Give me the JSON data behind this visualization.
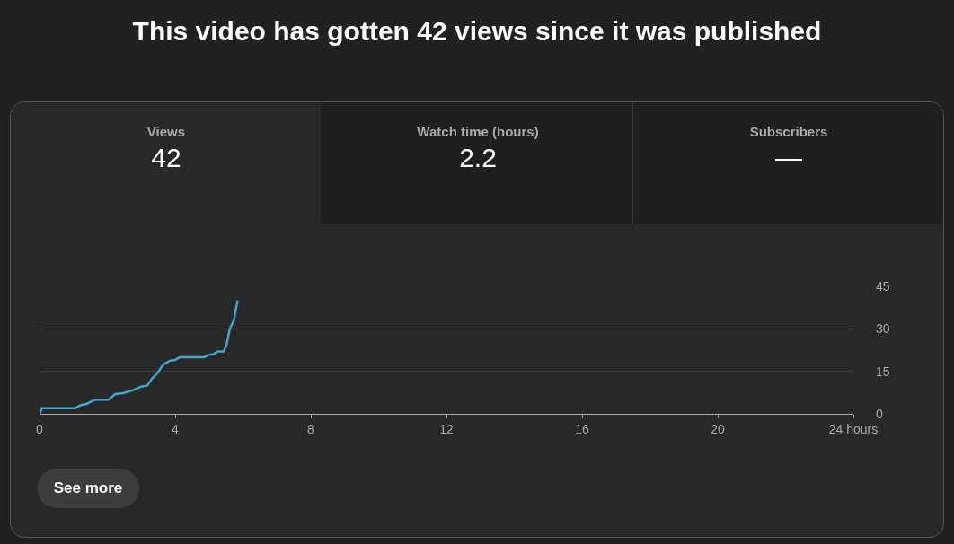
{
  "chart_data": {
    "type": "line",
    "title": "This video has gotten 42 views since it was published",
    "annotations": [
      "Views",
      "42",
      "Watch time (hours)",
      "2.2",
      "Subscribers",
      "—",
      "See more"
    ],
    "series": [
      {
        "color": "#41a8d0",
        "x": [
          0,
          0.07,
          1.06,
          1.2,
          1.38,
          1.65,
          2.05,
          2.23,
          2.46,
          2.73,
          3.0,
          3.18,
          3.32,
          3.45,
          3.66,
          3.86,
          4.0,
          4.13,
          4.85,
          4.98,
          5.12,
          5.25,
          5.43,
          5.52,
          5.61,
          5.73,
          5.84
        ],
        "values": [
          0,
          2,
          2,
          3,
          3.5,
          5,
          5,
          7,
          7.3,
          8.2,
          9.6,
          10,
          12.5,
          14,
          17.5,
          18.8,
          19,
          20,
          20,
          20.8,
          21,
          22,
          22,
          24.6,
          30,
          33,
          40
        ]
      }
    ],
    "xlim": [
      0,
      24
    ],
    "xticks": [
      0,
      4,
      8,
      12,
      16,
      20,
      {
        "value": 24,
        "label": "24 hours"
      }
    ],
    "ylim": [
      0,
      45
    ],
    "yticks": [
      0,
      15,
      30,
      45
    ],
    "grid": "y",
    "marker": "none",
    "line_style": "solid",
    "legend": false
  }
}
